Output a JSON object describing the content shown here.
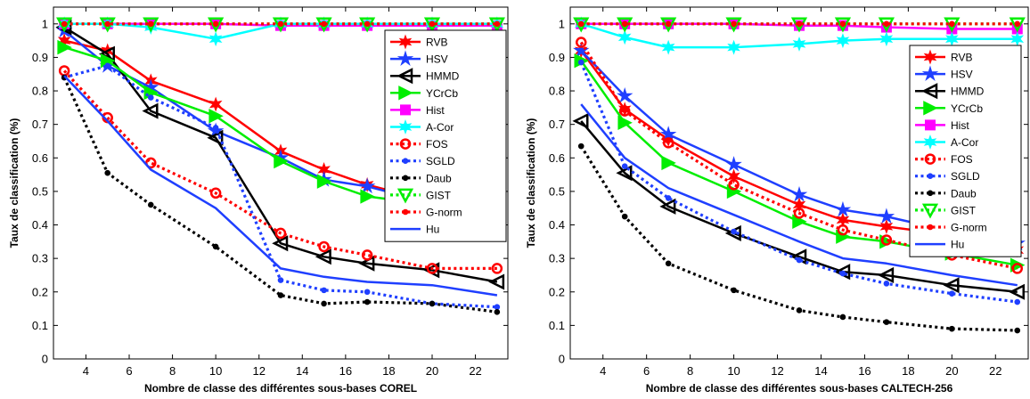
{
  "chart_data": [
    {
      "type": "line",
      "title": "",
      "xlabel": "Nombre de classe des différentes sous-bases COREL",
      "ylabel": "Taux de classification (%)",
      "xlim": [
        2.5,
        23.5
      ],
      "ylim": [
        0,
        1.05
      ],
      "xticks": [
        "4",
        "6",
        "8",
        "10",
        "12",
        "14",
        "16",
        "18",
        "20",
        "22"
      ],
      "yticks": [
        "0",
        "0.1",
        "0.2",
        "0.3",
        "0.4",
        "0.5",
        "0.6",
        "0.7",
        "0.8",
        "0.9",
        "1"
      ],
      "grid": false,
      "legend_position": "top-right",
      "x": [
        3,
        5,
        7,
        10,
        13,
        15,
        17,
        20,
        23
      ],
      "series": [
        {
          "name": "RVB",
          "color": "#ff0000",
          "dash": "solid",
          "marker": "star6",
          "values": [
            0.95,
            0.92,
            0.83,
            0.76,
            0.62,
            0.565,
            0.52,
            0.47,
            0.45
          ]
        },
        {
          "name": "HSV",
          "color": "#1f3fff",
          "dash": "solid",
          "marker": "star5",
          "values": [
            0.98,
            0.875,
            0.81,
            0.68,
            0.6,
            0.535,
            0.515,
            0.465,
            0.46
          ]
        },
        {
          "name": "HMMD",
          "color": "#000000",
          "dash": "solid",
          "marker": "triangle-left",
          "values": [
            0.99,
            0.91,
            0.74,
            0.66,
            0.345,
            0.305,
            0.285,
            0.265,
            0.23
          ]
        },
        {
          "name": "YCrCb",
          "color": "#00ee00",
          "dash": "solid",
          "marker": "triangle-right",
          "values": [
            0.93,
            0.89,
            0.795,
            0.725,
            0.59,
            0.53,
            0.485,
            0.46,
            0.42
          ]
        },
        {
          "name": "Hist",
          "color": "#ff00ff",
          "dash": "solid",
          "marker": "square",
          "values": [
            1.0,
            1.0,
            1.0,
            1.0,
            0.995,
            0.995,
            0.995,
            0.995,
            0.995
          ]
        },
        {
          "name": "A-Cor",
          "color": "#00ffff",
          "dash": "solid",
          "marker": "star6",
          "values": [
            1.0,
            1.0,
            0.99,
            0.955,
            1.0,
            1.0,
            1.0,
            1.0,
            1.0
          ]
        },
        {
          "name": "FOS",
          "color": "#ff0000",
          "dash": "dotted",
          "marker": "circle",
          "values": [
            0.86,
            0.72,
            0.585,
            0.495,
            0.375,
            0.335,
            0.31,
            0.27,
            0.27
          ]
        },
        {
          "name": "SGLD",
          "color": "#1f3fff",
          "dash": "dotted",
          "marker": "dot",
          "values": [
            0.84,
            0.875,
            0.78,
            0.69,
            0.235,
            0.205,
            0.2,
            0.165,
            0.155
          ]
        },
        {
          "name": "Daub",
          "color": "#000000",
          "dash": "dotted",
          "marker": "dot",
          "values": [
            0.84,
            0.555,
            0.46,
            0.335,
            0.19,
            0.165,
            0.17,
            0.165,
            0.14
          ]
        },
        {
          "name": "GIST",
          "color": "#00ee00",
          "dash": "dotted",
          "marker": "triangle-down",
          "values": [
            1.0,
            1.0,
            1.0,
            1.0,
            1.0,
            1.0,
            1.0,
            1.0,
            1.0
          ]
        },
        {
          "name": "G-norm",
          "color": "#ff0000",
          "dash": "dotted",
          "marker": "dot",
          "values": [
            1.0,
            1.0,
            1.0,
            1.0,
            1.0,
            1.0,
            1.0,
            1.0,
            1.0
          ]
        },
        {
          "name": "Hu",
          "color": "#1f3fff",
          "dash": "solid",
          "marker": "none",
          "values": [
            0.845,
            0.71,
            0.565,
            0.45,
            0.27,
            0.245,
            0.23,
            0.22,
            0.19
          ]
        }
      ]
    },
    {
      "type": "line",
      "title": "",
      "xlabel": "Nombre de classe des différentes sous-bases CALTECH-256",
      "ylabel": "Taux de classification (%)",
      "xlim": [
        2.5,
        23.5
      ],
      "ylim": [
        0,
        1.05
      ],
      "xticks": [
        "4",
        "6",
        "8",
        "10",
        "12",
        "14",
        "16",
        "18",
        "20",
        "22"
      ],
      "yticks": [
        "0",
        "0.1",
        "0.2",
        "0.3",
        "0.4",
        "0.5",
        "0.6",
        "0.7",
        "0.8",
        "0.9",
        "1"
      ],
      "grid": false,
      "legend_position": "right",
      "x": [
        3,
        5,
        7,
        10,
        13,
        15,
        17,
        20,
        23
      ],
      "series": [
        {
          "name": "RVB",
          "color": "#ff0000",
          "dash": "solid",
          "marker": "star6",
          "values": [
            0.92,
            0.745,
            0.655,
            0.545,
            0.46,
            0.415,
            0.395,
            0.37,
            0.325
          ]
        },
        {
          "name": "HSV",
          "color": "#1f3fff",
          "dash": "solid",
          "marker": "star5",
          "values": [
            0.92,
            0.785,
            0.67,
            0.58,
            0.49,
            0.445,
            0.425,
            0.38,
            0.345
          ]
        },
        {
          "name": "HMMD",
          "color": "#000000",
          "dash": "solid",
          "marker": "triangle-left",
          "values": [
            0.71,
            0.555,
            0.455,
            0.375,
            0.305,
            0.26,
            0.25,
            0.22,
            0.2
          ]
        },
        {
          "name": "YCrCb",
          "color": "#00ee00",
          "dash": "solid",
          "marker": "triangle-right",
          "values": [
            0.89,
            0.705,
            0.585,
            0.5,
            0.41,
            0.365,
            0.35,
            0.315,
            0.28
          ]
        },
        {
          "name": "Hist",
          "color": "#ff00ff",
          "dash": "solid",
          "marker": "square",
          "values": [
            1.0,
            1.0,
            1.0,
            1.0,
            0.995,
            0.995,
            0.99,
            0.985,
            0.985
          ]
        },
        {
          "name": "A-Cor",
          "color": "#00ffff",
          "dash": "solid",
          "marker": "star6",
          "values": [
            1.0,
            0.96,
            0.93,
            0.93,
            0.94,
            0.95,
            0.955,
            0.955,
            0.955
          ]
        },
        {
          "name": "FOS",
          "color": "#ff0000",
          "dash": "dotted",
          "marker": "circle",
          "values": [
            0.945,
            0.74,
            0.645,
            0.52,
            0.435,
            0.385,
            0.355,
            0.31,
            0.27
          ]
        },
        {
          "name": "SGLD",
          "color": "#1f3fff",
          "dash": "dotted",
          "marker": "dot",
          "values": [
            0.885,
            0.575,
            0.48,
            0.38,
            0.295,
            0.255,
            0.225,
            0.195,
            0.17
          ]
        },
        {
          "name": "Daub",
          "color": "#000000",
          "dash": "dotted",
          "marker": "dot",
          "values": [
            0.635,
            0.425,
            0.285,
            0.205,
            0.145,
            0.125,
            0.11,
            0.09,
            0.085
          ]
        },
        {
          "name": "GIST",
          "color": "#00ee00",
          "dash": "dotted",
          "marker": "triangle-down",
          "values": [
            1.0,
            1.0,
            1.0,
            1.0,
            1.0,
            1.0,
            1.0,
            1.0,
            1.0
          ]
        },
        {
          "name": "G-norm",
          "color": "#ff0000",
          "dash": "dotted",
          "marker": "dot",
          "values": [
            1.0,
            1.0,
            1.0,
            1.0,
            1.0,
            1.0,
            1.0,
            1.0,
            1.0
          ]
        },
        {
          "name": "Hu",
          "color": "#1f3fff",
          "dash": "solid",
          "marker": "none",
          "values": [
            0.76,
            0.6,
            0.51,
            0.43,
            0.35,
            0.3,
            0.285,
            0.25,
            0.22
          ]
        }
      ]
    }
  ]
}
